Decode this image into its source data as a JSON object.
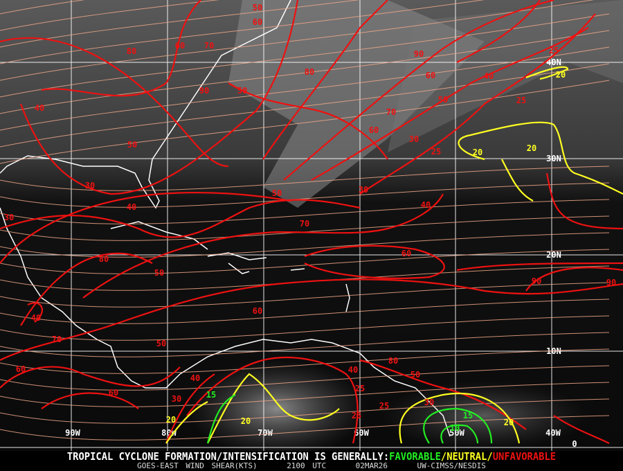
{
  "map": {
    "longitude_labels": [
      "90W",
      "80W",
      "70W",
      "60W",
      "50W",
      "40W"
    ],
    "latitude_labels": [
      "40N",
      "30N",
      "20N",
      "10N",
      "0"
    ],
    "contour_labels": {
      "red": [
        "50",
        "60",
        "70",
        "80",
        "60",
        "90",
        "50",
        "80",
        "60",
        "50",
        "70",
        "40",
        "60",
        "90",
        "40",
        "50",
        "25",
        "25",
        "30",
        "25",
        "50",
        "30",
        "40",
        "60",
        "70",
        "80",
        "30",
        "30",
        "40",
        "50",
        "90",
        "90",
        "40",
        "60",
        "70",
        "60",
        "50",
        "80",
        "60",
        "40",
        "50",
        "30",
        "40",
        "25",
        "25",
        "30",
        "25"
      ],
      "yellow": [
        "20",
        "20",
        "20",
        "20",
        "20",
        "20"
      ],
      "green": [
        "15",
        "15",
        "10"
      ]
    },
    "colors": {
      "favorable": "#22ee22",
      "neutral": "#ffff22",
      "unfavorable": "#ee1111",
      "streamline": "#f0a888",
      "grid": "#ffffff"
    }
  },
  "caption": {
    "headline": "TROPICAL CYCLONE FORMATION/INTENSIFICATION IS GENERALLY:",
    "favorable": "FAVORABLE",
    "sep1": "/",
    "neutral": "NEUTRAL",
    "sep2": "/",
    "unfavorable": "UNFAVORABLE",
    "product": "GOES-EAST WIND SHEAR(KTS)",
    "time": "2100 UTC",
    "date": "02MAR26",
    "source": "UW-CIMSS/NESDIS"
  }
}
